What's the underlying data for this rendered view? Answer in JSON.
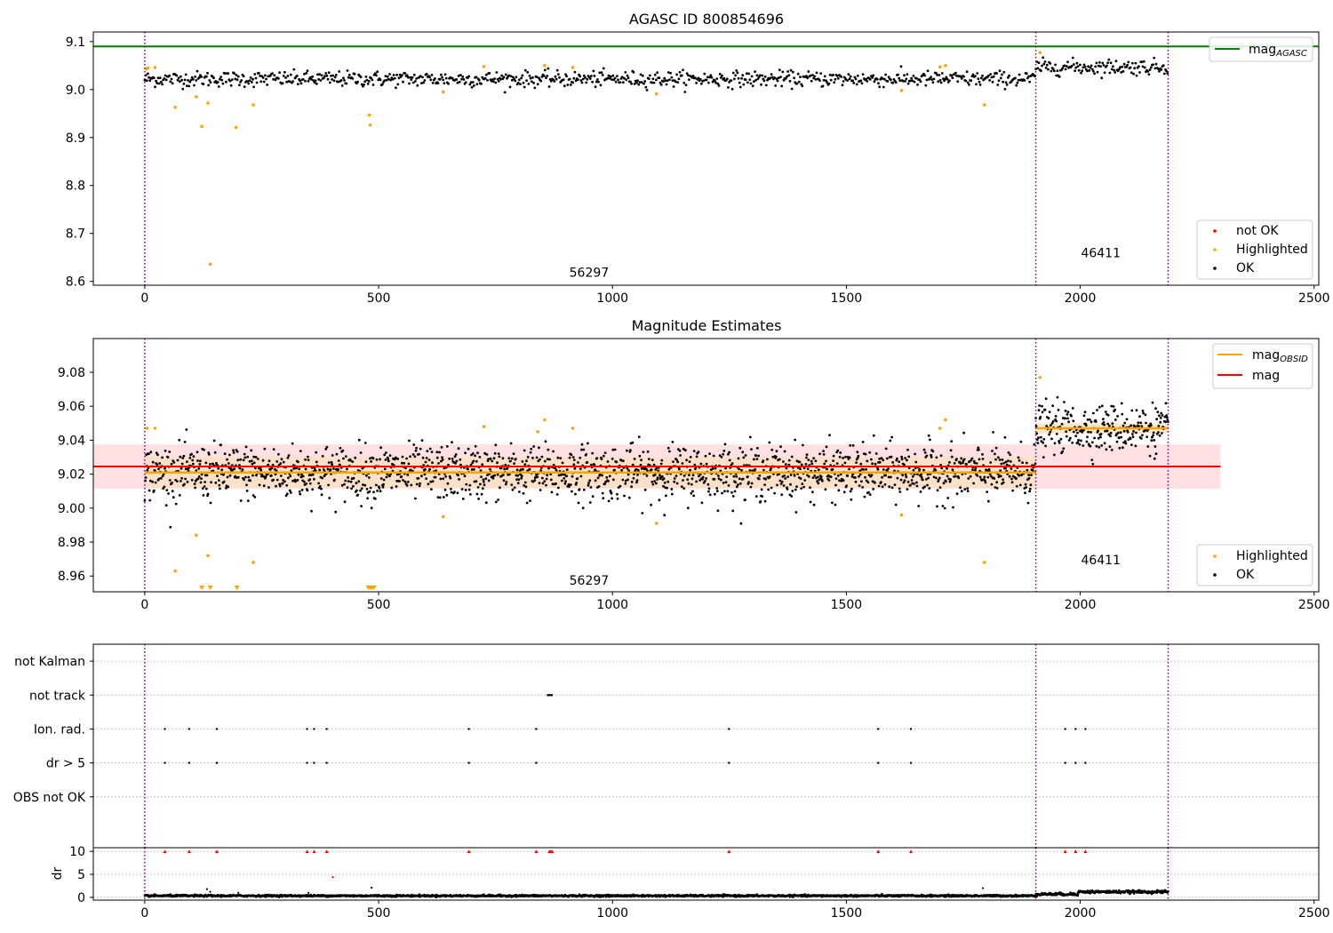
{
  "colors": {
    "ok": "#000000",
    "highlighted": "#ffa500",
    "not_ok": "#ff0000",
    "agasc_line": "#008000",
    "mag_line": "#ff0000",
    "obsid_line": "#ffa500",
    "marker": "#800080",
    "band_red": "#ffdde0",
    "band_orange": "#fde0c0",
    "grid": "#b0b0b0"
  },
  "chart_data": [
    {
      "type": "scatter",
      "title": "AGASC ID 800854696",
      "xlim": [
        -110,
        2510
      ],
      "ylim": [
        8.592,
        9.12
      ],
      "xticks": [
        0,
        500,
        1000,
        1500,
        2000,
        2500
      ],
      "yticks": [
        8.6,
        8.7,
        8.8,
        8.9,
        9.0,
        9.1
      ],
      "ytick_labels": [
        "8.6",
        "8.7",
        "8.8",
        "8.9",
        "9.0",
        "9.1"
      ],
      "agasc_mag": 9.09,
      "obsid_boundaries": [
        0,
        1905,
        2188
      ],
      "obsids": [
        {
          "label": "56297",
          "x": 950,
          "y": 8.61
        },
        {
          "label": "46411",
          "x": 2044,
          "y": 8.65
        }
      ],
      "ok_series": [
        {
          "x0": 0,
          "x1": 1905,
          "level": 9.022,
          "spread": 0.008,
          "step": 2.2
        },
        {
          "x0": 1905,
          "x1": 2188,
          "level": 9.047,
          "spread": 0.008,
          "step": 2.2
        }
      ],
      "highlighted": [
        [
          3,
          9.043
        ],
        [
          7,
          9.045
        ],
        [
          22,
          9.046
        ],
        [
          65,
          8.963
        ],
        [
          110,
          8.985
        ],
        [
          122,
          8.923
        ],
        [
          135,
          8.972
        ],
        [
          140,
          8.636
        ],
        [
          195,
          8.921
        ],
        [
          232,
          8.968
        ],
        [
          480,
          8.947
        ],
        [
          482,
          8.926
        ],
        [
          638,
          8.995
        ],
        [
          725,
          9.048
        ],
        [
          855,
          9.05
        ],
        [
          915,
          9.046
        ],
        [
          1094,
          8.991
        ],
        [
          1618,
          8.998
        ],
        [
          1700,
          9.047
        ],
        [
          1712,
          9.05
        ],
        [
          1795,
          8.968
        ],
        [
          1914,
          9.077
        ]
      ],
      "not_ok": [],
      "legend_lines": [
        {
          "label": "mag",
          "sub": "AGASC"
        }
      ],
      "legend_points": [
        "not OK",
        "Highlighted",
        "OK"
      ]
    },
    {
      "type": "scatter",
      "title": "Magnitude Estimates",
      "xlim": [
        -110,
        2510
      ],
      "ylim": [
        8.9507,
        9.0999
      ],
      "xticks": [
        0,
        500,
        1000,
        1500,
        2000,
        2500
      ],
      "yticks": [
        8.96,
        8.98,
        9.0,
        9.02,
        9.04,
        9.06,
        9.08
      ],
      "ytick_labels": [
        "8.96",
        "8.98",
        "9.00",
        "9.02",
        "9.04",
        "9.06",
        "9.08"
      ],
      "mag": 9.0245,
      "mag_band": [
        9.0115,
        9.0375
      ],
      "mag_band_x": [
        -110,
        2300
      ],
      "obsid_mags": [
        {
          "x0": 0,
          "x1": 1905,
          "mag": 9.021,
          "band": [
            9.012,
            9.03
          ]
        },
        {
          "x0": 1905,
          "x1": 2188,
          "mag": 9.047,
          "band": [
            9.044,
            9.05
          ]
        }
      ],
      "obsid_boundaries": [
        0,
        1905,
        2188
      ],
      "obsids": [
        {
          "label": "56297",
          "x": 950,
          "y": 8.955
        },
        {
          "label": "46411",
          "x": 2044,
          "y": 8.967
        }
      ],
      "ok_series": [
        {
          "x0": 0,
          "x1": 1905,
          "level": 9.021,
          "spread": 0.008,
          "step": 1.1
        },
        {
          "x0": 1905,
          "x1": 2188,
          "level": 9.047,
          "spread": 0.007,
          "step": 1.1
        }
      ],
      "highlighted": [
        [
          5,
          9.047
        ],
        [
          22,
          9.047
        ],
        [
          65,
          8.963
        ],
        [
          110,
          8.984
        ],
        [
          135,
          8.972
        ],
        [
          232,
          8.968
        ],
        [
          638,
          8.995
        ],
        [
          725,
          9.048
        ],
        [
          840,
          9.045
        ],
        [
          855,
          9.052
        ],
        [
          915,
          9.047
        ],
        [
          1094,
          8.991
        ],
        [
          1618,
          8.996
        ],
        [
          1700,
          9.047
        ],
        [
          1712,
          9.052
        ],
        [
          1795,
          8.968
        ],
        [
          1914,
          9.077
        ]
      ],
      "clipped_low": [
        122,
        140,
        197,
        478,
        482,
        486,
        490
      ],
      "legend_lines": [
        {
          "label": "mag",
          "sub": "OBSID"
        },
        {
          "label": "mag",
          "sub": ""
        }
      ],
      "legend_points": [
        "Highlighted",
        "OK"
      ]
    },
    {
      "type": "scatter",
      "title": "",
      "xlim": [
        -110,
        2510
      ],
      "ylim": [
        -0.5,
        5.5
      ],
      "yticks": [
        1,
        2,
        3,
        4,
        5
      ],
      "ytick_labels": [
        "OBS not OK",
        "dr > 5",
        "Ion. rad.",
        "not track",
        "not Kalman"
      ],
      "obsid_boundaries": [
        0,
        1905,
        2188
      ],
      "not_track": [
        862,
        866,
        870
      ],
      "ion_rad": [
        43,
        95,
        154,
        347,
        362,
        389,
        693,
        837,
        1249,
        1568,
        1638,
        1968,
        1990,
        2011
      ],
      "dr_gt5": [
        43,
        95,
        154,
        347,
        362,
        389,
        693,
        837,
        1249,
        1568,
        1638,
        1968,
        1990,
        2011
      ],
      "obs_not_ok": []
    },
    {
      "type": "scatter",
      "title": "",
      "ylabel": "dr",
      "xlim": [
        -110,
        2510
      ],
      "ylim": [
        -0.6,
        10.8
      ],
      "xticks": [
        0,
        500,
        1000,
        1500,
        2000,
        2500
      ],
      "yticks": [
        0,
        5,
        10
      ],
      "ytick_labels": [
        "0",
        "5",
        "10"
      ],
      "obsid_boundaries": [
        0,
        1905,
        2188
      ],
      "dr_clipped": [
        43,
        95,
        154,
        347,
        362,
        389,
        693,
        837,
        865,
        868,
        871,
        1249,
        1568,
        1638,
        1968,
        1990,
        2011
      ],
      "dr_outliers": [
        [
          133,
          1.8
        ],
        [
          140,
          1.2
        ],
        [
          200,
          1.0
        ],
        [
          350,
          1.0
        ],
        [
          402,
          4.4
        ],
        [
          485,
          2.1
        ],
        [
          1792,
          2.0
        ]
      ],
      "dr_series": [
        {
          "x0": 0,
          "x1": 1905,
          "level": 0.35,
          "spread": 0.2,
          "step": 1.0
        },
        {
          "x0": 1905,
          "x1": 1995,
          "level": 0.7,
          "spread": 0.3,
          "step": 1.0
        },
        {
          "x0": 1995,
          "x1": 2188,
          "level": 1.2,
          "spread": 0.3,
          "step": 1.0
        }
      ]
    }
  ]
}
